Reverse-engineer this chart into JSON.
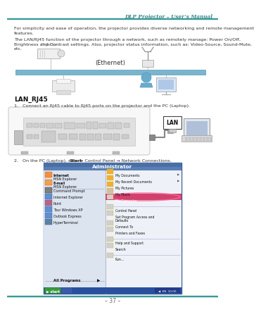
{
  "page_bg": "#ffffff",
  "header_line_color": "#3a9999",
  "header_text": "DLP Projector – User’s Manual",
  "header_text_color": "#3a8888",
  "footer_line_color": "#3a9999",
  "footer_text": "– 37 –",
  "footer_text_color": "#666666",
  "body_text_color": "#333333",
  "para1": "For simplicity and ease of operation, the projector provides diverse networking and remote management\nfeatures.",
  "para2": "The LAN/RJ45 function of the projector through a network, such as remotely manage: Power On/Off,\nBrightness and Contrast settings. Also, projector status information, such as: Video-Source, Sound-Mute,\netc.",
  "ethernet_label": "(Ethernet)",
  "section_title": "LAN_RJ45",
  "step1": "1.   Connect an RJ45 cable to RJ45 ports on the projector and the PC (Laptop).",
  "step2a": "2.   On the PC (Laptop), select ",
  "step2b": "Start",
  "step2c": " → Control Panel → Network Connections.",
  "bar_color": "#7ab5cc",
  "bar_edge": "#5599bb",
  "lan_bg": "#ffffff",
  "menu_title_bg": "#4a6fa5",
  "menu_left_bg": "#dce4f0",
  "menu_right_bg": "#eef2f8",
  "menu_bottom_bg": "#2a4f9f",
  "start_btn_color": "#3a9a3a",
  "highlight_color": "#a0184c"
}
